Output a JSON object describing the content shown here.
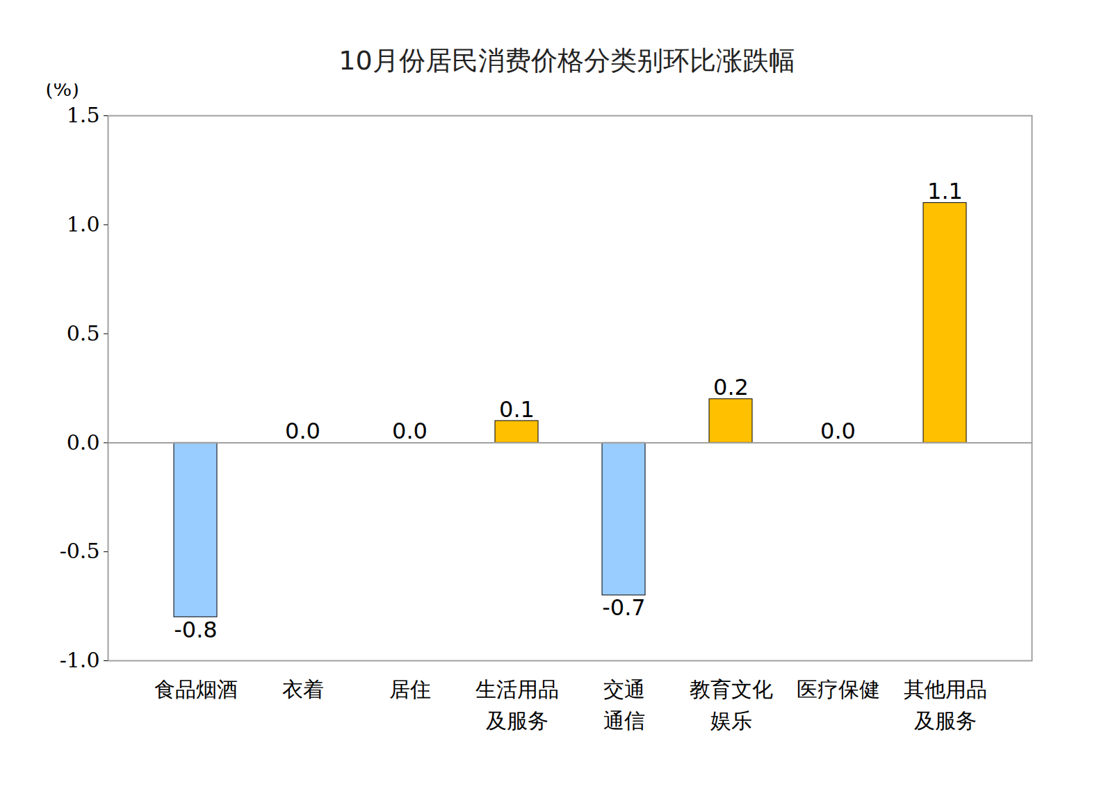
{
  "chart_data": {
    "type": "bar",
    "title": "10月份居民消费价格分类别环比涨跌幅",
    "y_label": "(%)",
    "categories": [
      "食品烟酒",
      "衣着",
      "居住",
      "生活用品\n及服务",
      "交通\n通信",
      "教育文化\n娱乐",
      "医疗保健",
      "其他用品\n及服务"
    ],
    "values": [
      -0.8,
      0.0,
      0.0,
      0.1,
      -0.7,
      0.2,
      0.0,
      1.1
    ],
    "value_labels": [
      "-0.8",
      "0.0",
      "0.0",
      "0.1",
      "-0.7",
      "0.2",
      "0.0",
      "1.1"
    ],
    "colors": [
      "#99ccff",
      "#ffc000",
      "#ffc000",
      "#ffc000",
      "#99ccff",
      "#ffc000",
      "#ffc000",
      "#ffc000"
    ],
    "ylim": [
      -1.0,
      1.5
    ],
    "yticks": [
      {
        "value": -1.0,
        "label": "-1.0"
      },
      {
        "value": -0.5,
        "label": "-0.5"
      },
      {
        "value": 0,
        "label": "0.0"
      },
      {
        "value": 0.5,
        "label": "0.5"
      },
      {
        "value": 1.0,
        "label": "1.0"
      },
      {
        "value": 1.5,
        "label": "1.5"
      }
    ],
    "grid": false,
    "data_labels": true
  }
}
